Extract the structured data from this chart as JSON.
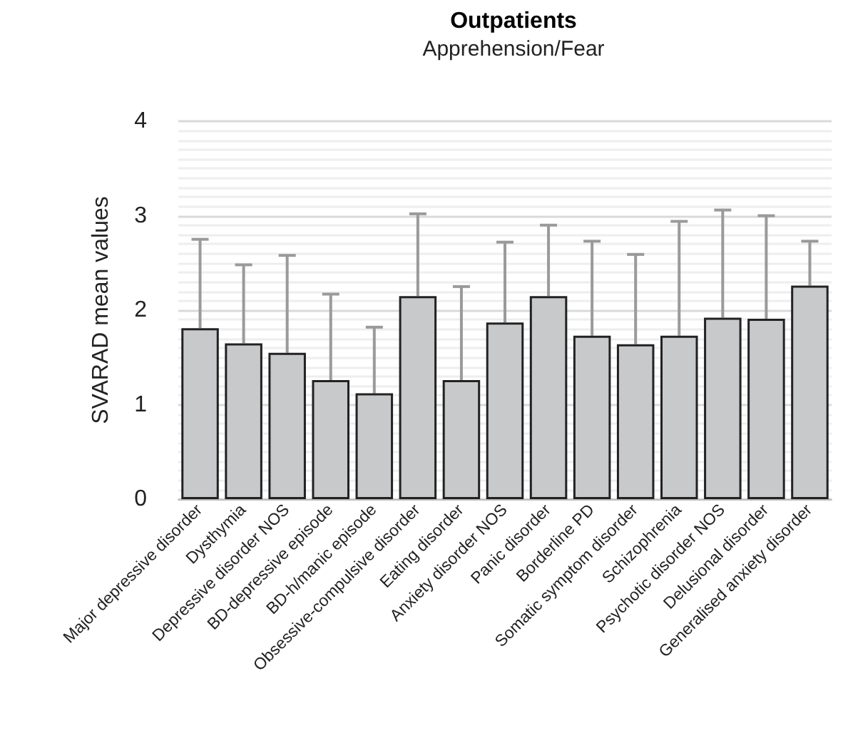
{
  "chart_data": {
    "type": "bar",
    "title": "Outpatients",
    "subtitle": "Apprehension/Fear",
    "ylabel": "SVARAD mean values",
    "categories": [
      "Major depressive disorder",
      "Dysthymia",
      "Depressive disorder NOS",
      "BD-depressive episode",
      "BD-h/manic episode",
      "Obsessive-compulsive disorder",
      "Eating disorder",
      "Anxiety disorder NOS",
      "Panic disorder",
      "Borderline PD",
      "Somatic symptom disorder",
      "Schizophrenia",
      "Psychotic disorder NOS",
      "Delusional disorder",
      "Generalised anxiety disorder"
    ],
    "values": [
      1.81,
      1.65,
      1.55,
      1.26,
      1.12,
      2.15,
      1.26,
      1.87,
      2.15,
      1.73,
      1.64,
      1.73,
      1.92,
      1.91,
      2.26
    ],
    "errors": [
      [
        1.81,
        2.75
      ],
      [
        1.65,
        2.48
      ],
      [
        1.55,
        2.58
      ],
      [
        1.26,
        2.17
      ],
      [
        1.12,
        1.82
      ],
      [
        2.15,
        3.02
      ],
      [
        1.26,
        2.25
      ],
      [
        1.87,
        2.72
      ],
      [
        2.15,
        2.9
      ],
      [
        1.73,
        2.73
      ],
      [
        1.64,
        2.59
      ],
      [
        1.73,
        2.94
      ],
      [
        1.92,
        3.06
      ],
      [
        1.91,
        3.0
      ],
      [
        2.26,
        2.73
      ]
    ],
    "color": "#c8c9cb",
    "ylim": [
      0,
      4
    ],
    "yticks": [
      0,
      1,
      2,
      3,
      4
    ],
    "grid": true
  }
}
